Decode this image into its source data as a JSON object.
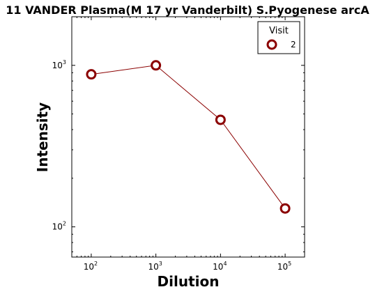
{
  "chart_data": {
    "type": "line",
    "title": "11 VANDER Plasma(M 17 yr Vanderbilt) S.Pyogenese arcA",
    "xlabel": "Dilution",
    "ylabel": "Intensity",
    "xscale": "log",
    "yscale": "log",
    "xlim": [
      50,
      200000
    ],
    "ylim": [
      65,
      2000
    ],
    "xticks": [
      {
        "base": "10",
        "exp": "2"
      },
      {
        "base": "10",
        "exp": "3"
      },
      {
        "base": "10",
        "exp": "4"
      },
      {
        "base": "10",
        "exp": "5"
      }
    ],
    "yticks": [
      {
        "base": "10",
        "exp": "2"
      },
      {
        "base": "10",
        "exp": "3"
      }
    ],
    "legend": {
      "title": "Visit",
      "placement": "top-right"
    },
    "grid": false,
    "series": [
      {
        "name": "2",
        "color": "#8b0000",
        "marker": "hollow-circle",
        "x": [
          100,
          1000,
          10000,
          100000
        ],
        "y": [
          880,
          1000,
          460,
          130
        ]
      }
    ]
  }
}
